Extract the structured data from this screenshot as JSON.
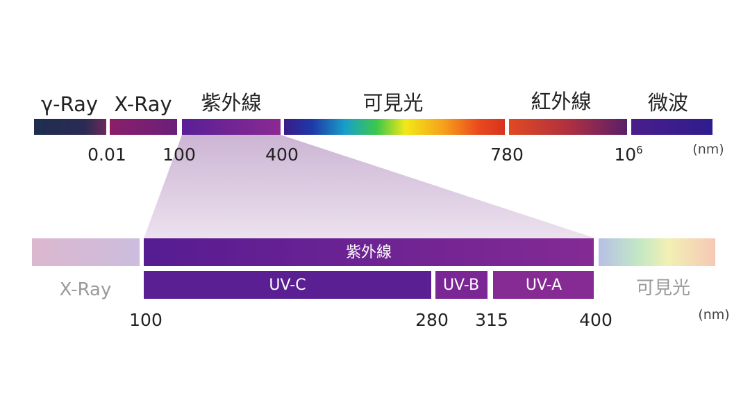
{
  "spectrum": {
    "bands": [
      {
        "label": "γ-Ray"
      },
      {
        "label": "X-Ray"
      },
      {
        "label": "紫外線"
      },
      {
        "label": "可見光"
      },
      {
        "label": "紅外線"
      },
      {
        "label": "微波"
      }
    ],
    "ticks": [
      "0.01",
      "100",
      "400",
      "780",
      "10",
      "6"
    ],
    "unit": "(nm)"
  },
  "uv_detail": {
    "title": "紫外線",
    "left_label": "X-Ray",
    "right_label": "可見光",
    "sub_bands": [
      {
        "label": "UV-C"
      },
      {
        "label": "UV-B"
      },
      {
        "label": "UV-A"
      }
    ],
    "ticks": [
      "100",
      "280",
      "315",
      "400"
    ],
    "unit": "(nm)"
  },
  "colors": {
    "gamma": "#1f2f52",
    "xray": "#7c1f6b",
    "uv_dark": "#5a1f8f",
    "uv_mid": "#7a2a9a",
    "microwave": "#3c1c8c",
    "zoom_fill": "#d9c5de"
  }
}
